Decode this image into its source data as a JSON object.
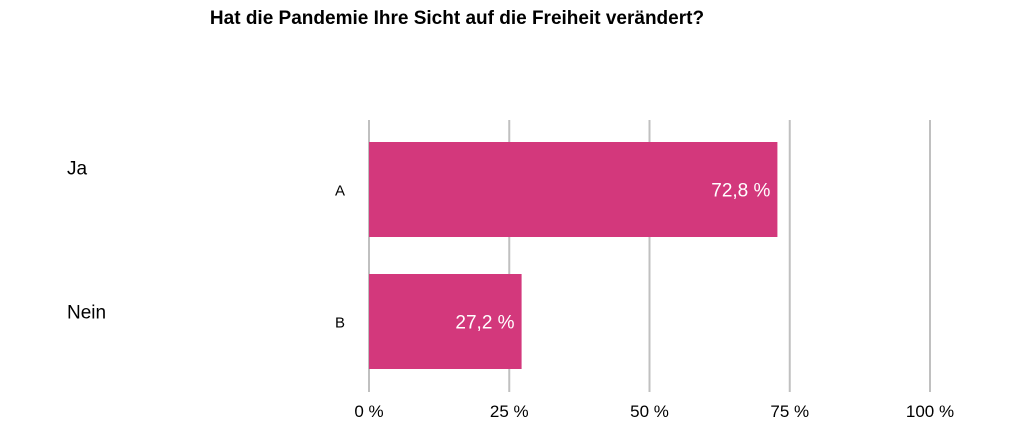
{
  "title": "Hat die Pandemie Ihre Sicht auf die Freiheit verändert?",
  "chart_data": {
    "type": "bar",
    "orientation": "horizontal",
    "title": "Hat die Pandemie Ihre Sicht auf die Freiheit verändert?",
    "categories": [
      "Ja",
      "Nein"
    ],
    "bar_labels": [
      "A",
      "B"
    ],
    "values": [
      72.8,
      27.2
    ],
    "value_labels": [
      "72,8 %",
      "27,2 %"
    ],
    "xlim": [
      0,
      100
    ],
    "ticks": [
      0,
      25,
      50,
      75,
      100
    ],
    "tick_labels": [
      "0 %",
      "25 %",
      "50 %",
      "75 %",
      "100 %"
    ],
    "grid": true,
    "colors": {
      "bar": "#d3387c",
      "grid": "#c0c0c0"
    }
  }
}
